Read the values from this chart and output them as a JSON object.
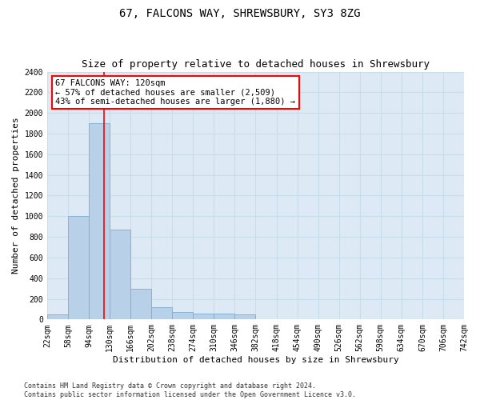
{
  "title1": "67, FALCONS WAY, SHREWSBURY, SY3 8ZG",
  "title2": "Size of property relative to detached houses in Shrewsbury",
  "xlabel": "Distribution of detached houses by size in Shrewsbury",
  "ylabel": "Number of detached properties",
  "annotation_title": "67 FALCONS WAY: 120sqm",
  "annotation_line1": "← 57% of detached houses are smaller (2,509)",
  "annotation_line2": "43% of semi-detached houses are larger (1,880) →",
  "footer1": "Contains HM Land Registry data © Crown copyright and database right 2024.",
  "footer2": "Contains public sector information licensed under the Open Government Licence v3.0.",
  "bin_edges": [
    22,
    58,
    94,
    130,
    166,
    202,
    238,
    274,
    310,
    346,
    382,
    418,
    454,
    490,
    526,
    562,
    598,
    634,
    670,
    706,
    742
  ],
  "bin_counts": [
    50,
    1000,
    1900,
    870,
    300,
    120,
    75,
    55,
    55,
    50,
    0,
    0,
    0,
    0,
    0,
    0,
    0,
    0,
    0,
    0
  ],
  "bar_color": "#b8d0e8",
  "bar_edge_color": "#7aafd0",
  "vline_color": "red",
  "vline_x": 120,
  "ylim": [
    0,
    2400
  ],
  "yticks": [
    0,
    200,
    400,
    600,
    800,
    1000,
    1200,
    1400,
    1600,
    1800,
    2000,
    2200,
    2400
  ],
  "grid_color": "#c8dcea",
  "plot_bg_color": "#ddeaf5",
  "title_fontsize": 10,
  "subtitle_fontsize": 9,
  "ylabel_fontsize": 8,
  "xlabel_fontsize": 8,
  "tick_fontsize": 7,
  "ann_fontsize": 7.5,
  "footer_fontsize": 6
}
